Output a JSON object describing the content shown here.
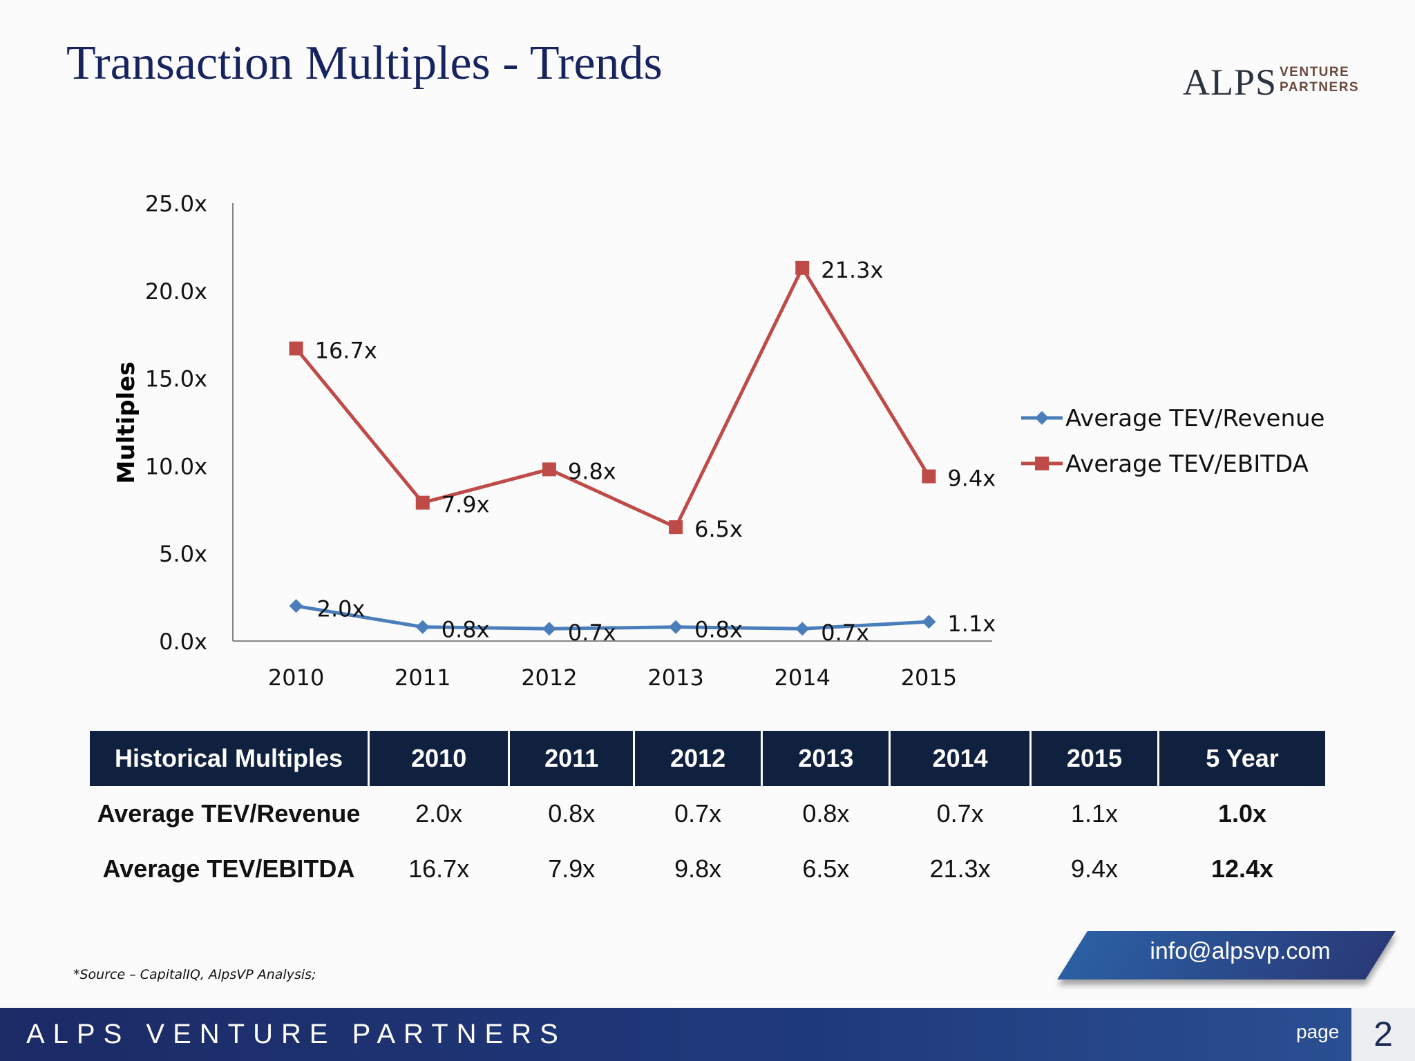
{
  "header": {
    "title": "Transaction Multiples - Trends",
    "logo_main": "ALPS",
    "logo_sub1": "VENTURE",
    "logo_sub2": "PARTNERS"
  },
  "chart_data": {
    "type": "line",
    "title": "",
    "xlabel": "",
    "ylabel": "Multiples",
    "categories": [
      "2010",
      "2011",
      "2012",
      "2013",
      "2014",
      "2015"
    ],
    "ylim": [
      0,
      25
    ],
    "yticks": [
      0,
      5,
      10,
      15,
      20,
      25
    ],
    "ytick_labels": [
      "0.0x",
      "5.0x",
      "10.0x",
      "15.0x",
      "20.0x",
      "25.0x"
    ],
    "grid": false,
    "legend": "right",
    "series": [
      {
        "name": "Average TEV/Revenue",
        "values": [
          2.0,
          0.8,
          0.7,
          0.8,
          0.7,
          1.1
        ],
        "labels": [
          "2.0x",
          "0.8x",
          "0.7x",
          "0.8x",
          "0.7x",
          "1.1x"
        ],
        "color": "#4a7ebb",
        "marker": "diamond"
      },
      {
        "name": "Average TEV/EBITDA",
        "values": [
          16.7,
          7.9,
          9.8,
          6.5,
          21.3,
          9.4
        ],
        "labels": [
          "16.7x",
          "7.9x",
          "9.8x",
          "6.5x",
          "21.3x",
          "9.4x"
        ],
        "color": "#be4b48",
        "marker": "square"
      }
    ]
  },
  "table": {
    "headers": [
      "Historical Multiples",
      "2010",
      "2011",
      "2012",
      "2013",
      "2014",
      "2015",
      "5 Year"
    ],
    "rows": [
      {
        "label": "Average TEV/Revenue",
        "values": [
          "2.0x",
          "0.8x",
          "0.7x",
          "0.8x",
          "0.7x",
          "1.1x"
        ],
        "five_year": "1.0x"
      },
      {
        "label": "Average TEV/EBITDA",
        "values": [
          "16.7x",
          "7.9x",
          "9.8x",
          "6.5x",
          "21.3x",
          "9.4x"
        ],
        "five_year": "12.4x"
      }
    ]
  },
  "source_note": "*Source – CapitalIQ, AlpsVP Analysis;",
  "contact": {
    "email": "info@alpsvp.com"
  },
  "footer": {
    "brand": "ALPS VENTURE PARTNERS",
    "page_label": "page",
    "page_number": "2"
  }
}
